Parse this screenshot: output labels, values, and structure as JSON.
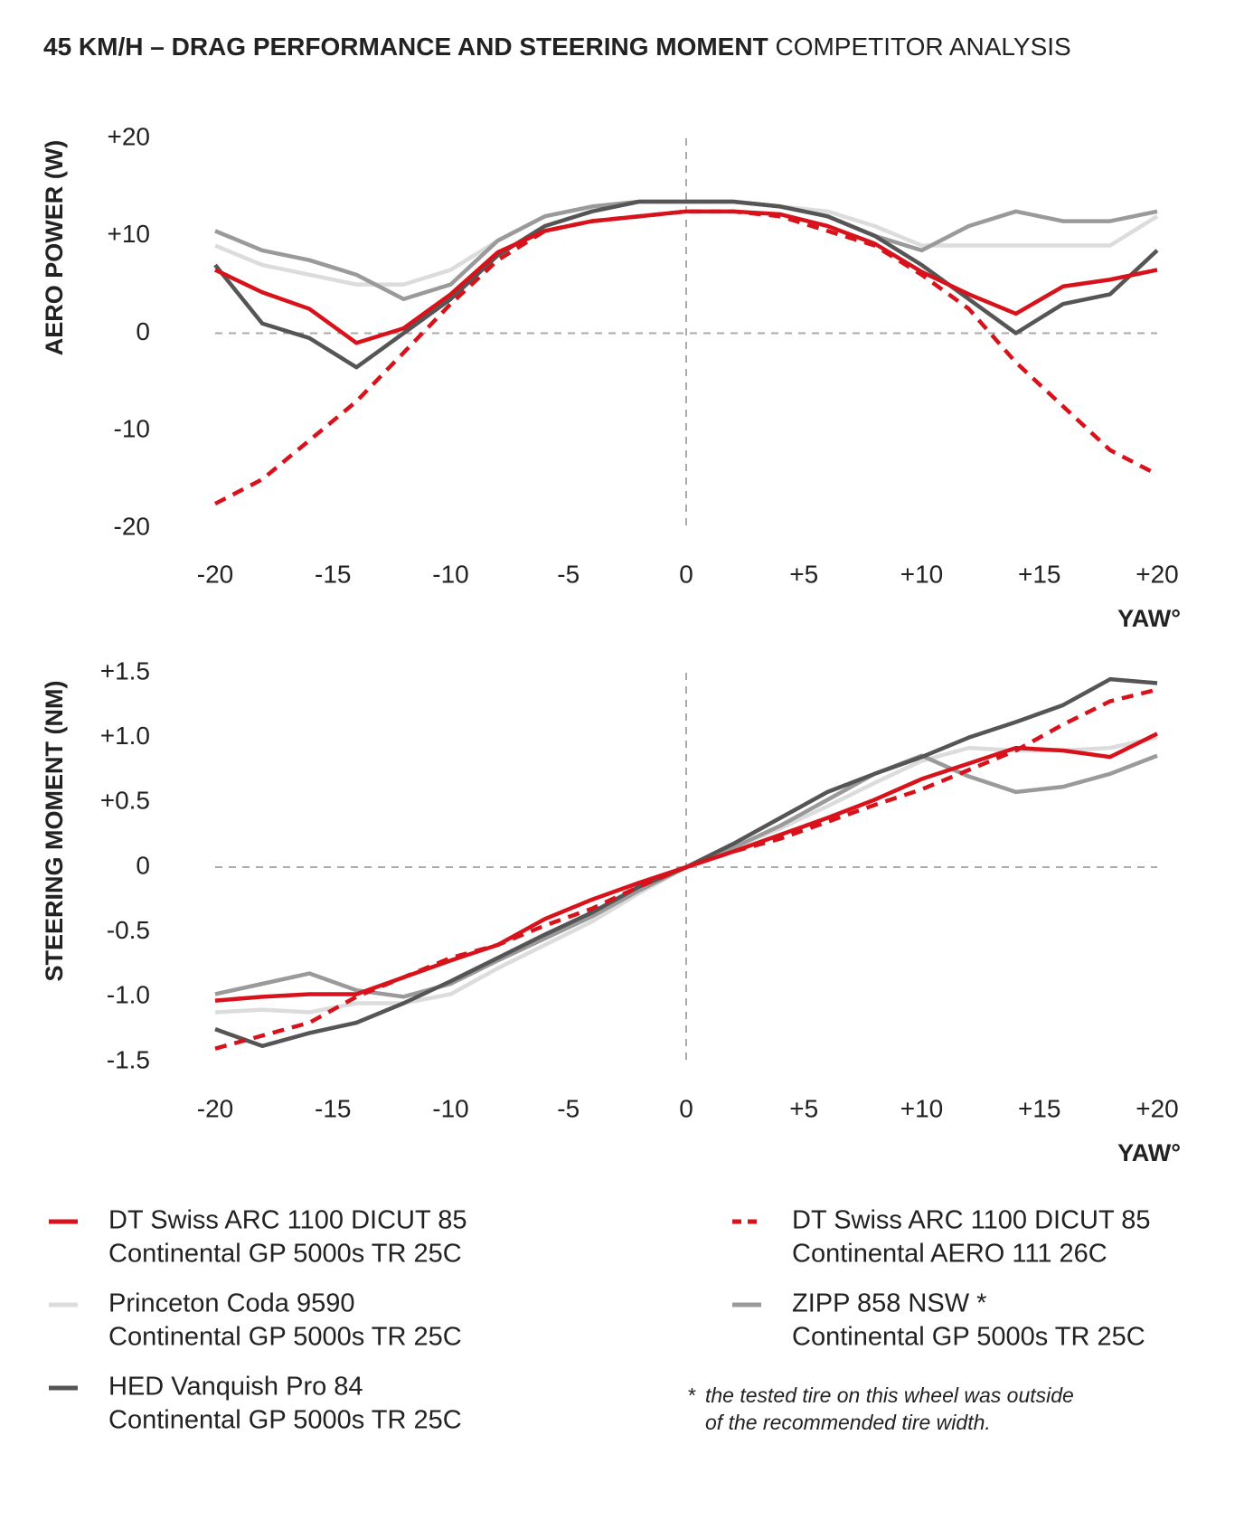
{
  "title_bold": "45 KM/H – DRAG PERFORMANCE AND STEERING MOMENT",
  "title_light": "COMPETITOR ANALYSIS",
  "footnote": [
    "*",
    "the tested tire on this wheel was outside",
    "of the recommended tire width."
  ],
  "chart_data": [
    {
      "type": "line",
      "ylabel": "AERO POWER (W)",
      "xlabel": "YAW°",
      "x": [
        -20,
        -18,
        -16,
        -14,
        -12,
        -10,
        -8,
        -6,
        -4,
        -2,
        0,
        2,
        4,
        6,
        8,
        10,
        12,
        14,
        16,
        18,
        20
      ],
      "xlim": [
        -20,
        20
      ],
      "xticks": [
        -20,
        -15,
        -10,
        -5,
        0,
        {
          "value": 5,
          "label": "+5"
        },
        {
          "value": 10,
          "label": "+10"
        },
        {
          "value": 15,
          "label": "+15"
        },
        {
          "value": 20,
          "label": "+20"
        }
      ],
      "ylim": [
        -20,
        20
      ],
      "yticks": [
        {
          "value": 20,
          "label": "+20"
        },
        {
          "value": 10,
          "label": "+10"
        },
        0,
        -10,
        -20
      ],
      "series": [
        {
          "name": "Princeton Coda 9590",
          "tire": "Continental GP 5000s TR 25C",
          "color": "#dcdcdc",
          "dashed": false,
          "values": [
            9,
            7,
            6,
            5,
            5,
            6.5,
            9.5,
            12,
            13,
            13.5,
            13.5,
            13.5,
            13,
            12.5,
            11,
            9,
            9,
            9,
            9,
            9,
            12
          ]
        },
        {
          "name": "ZIPP 858 NSW *",
          "tire": "Continental GP 5000s TR 25C",
          "color": "#9a9a9a",
          "dashed": false,
          "values": [
            10.5,
            8.5,
            7.5,
            6,
            3.5,
            5,
            9.5,
            12,
            13,
            13.5,
            13.5,
            13.5,
            13,
            12,
            10,
            8.5,
            11,
            12.5,
            11.5,
            11.5,
            12.5
          ]
        },
        {
          "name": "HED Vanquish Pro 84",
          "tire": "Continental GP 5000s TR 25C",
          "color": "#555555",
          "dashed": false,
          "values": [
            7,
            1,
            -0.5,
            -3.5,
            0,
            3.5,
            8,
            11,
            12.5,
            13.5,
            13.5,
            13.5,
            13,
            12,
            10,
            7,
            3.5,
            0,
            3,
            4,
            8.5
          ]
        },
        {
          "name": "DT Swiss ARC 1100 DICUT 85",
          "tire": "Continental AERO 111 26C",
          "color": "#d7121b",
          "dashed": true,
          "values": [
            -17.5,
            -15,
            -11,
            -7,
            -2,
            3,
            7.5,
            10.5,
            11.5,
            12,
            12.5,
            12.5,
            12,
            10.5,
            9,
            6,
            2.5,
            -3,
            -7.5,
            -12,
            -14.5
          ]
        },
        {
          "name": "DT Swiss ARC 1100 DICUT 85",
          "tire": "Continental GP 5000s TR 25C",
          "color": "#d7121b",
          "dashed": false,
          "values": [
            6.5,
            4.2,
            2.5,
            -1,
            0.5,
            4,
            8.3,
            10.5,
            11.5,
            12,
            12.5,
            12.5,
            12.2,
            11,
            9.2,
            6.3,
            4,
            2,
            4.8,
            5.5,
            6.5
          ]
        }
      ]
    },
    {
      "type": "line",
      "ylabel": "STEERING MOMENT (NM)",
      "xlabel": "YAW°",
      "x": [
        -20,
        -18,
        -16,
        -14,
        -12,
        -10,
        -8,
        -6,
        -4,
        -2,
        0,
        2,
        4,
        6,
        8,
        10,
        12,
        14,
        16,
        18,
        20
      ],
      "xlim": [
        -20,
        20
      ],
      "xticks": [
        -20,
        -15,
        -10,
        -5,
        0,
        {
          "value": 5,
          "label": "+5"
        },
        {
          "value": 10,
          "label": "+10"
        },
        {
          "value": 15,
          "label": "+15"
        },
        {
          "value": 20,
          "label": "+20"
        }
      ],
      "ylim": [
        -1.5,
        1.5
      ],
      "yticks": [
        {
          "value": 1.5,
          "label": "+1.5"
        },
        {
          "value": 1,
          "label": "+1.0"
        },
        {
          "value": 0.5,
          "label": "+0.5"
        },
        0,
        -0.5,
        {
          "value": -1,
          "label": "-1.0"
        },
        -1.5
      ],
      "series": [
        {
          "color": "#dcdcdc",
          "dashed": false,
          "values": [
            -1.12,
            -1.1,
            -1.12,
            -1.05,
            -1.05,
            -0.98,
            -0.78,
            -0.6,
            -0.42,
            -0.2,
            0,
            0.15,
            0.3,
            0.47,
            0.65,
            0.82,
            0.92,
            0.9,
            0.9,
            0.92,
            1.0
          ]
        },
        {
          "color": "#9a9a9a",
          "dashed": false,
          "values": [
            -0.98,
            -0.9,
            -0.82,
            -0.95,
            -1.0,
            -0.9,
            -0.72,
            -0.55,
            -0.38,
            -0.18,
            0,
            0.15,
            0.32,
            0.52,
            0.72,
            0.86,
            0.7,
            0.58,
            0.62,
            0.72,
            0.86
          ]
        },
        {
          "color": "#555555",
          "dashed": false,
          "values": [
            -1.25,
            -1.38,
            -1.28,
            -1.2,
            -1.05,
            -0.88,
            -0.7,
            -0.52,
            -0.35,
            -0.15,
            0,
            0.18,
            0.38,
            0.58,
            0.72,
            0.85,
            1.0,
            1.12,
            1.25,
            1.45,
            1.42
          ]
        },
        {
          "color": "#d7121b",
          "dashed": true,
          "values": [
            -1.4,
            -1.3,
            -1.2,
            -1.0,
            -0.85,
            -0.7,
            -0.6,
            -0.45,
            -0.32,
            -0.15,
            0,
            0.12,
            0.22,
            0.35,
            0.48,
            0.6,
            0.75,
            0.9,
            1.1,
            1.28,
            1.37
          ]
        },
        {
          "color": "#d7121b",
          "dashed": false,
          "values": [
            -1.03,
            -1.0,
            -0.98,
            -0.98,
            -0.85,
            -0.72,
            -0.6,
            -0.4,
            -0.25,
            -0.12,
            0,
            0.12,
            0.25,
            0.38,
            0.52,
            0.68,
            0.8,
            0.92,
            0.9,
            0.85,
            1.03
          ]
        }
      ]
    }
  ]
}
